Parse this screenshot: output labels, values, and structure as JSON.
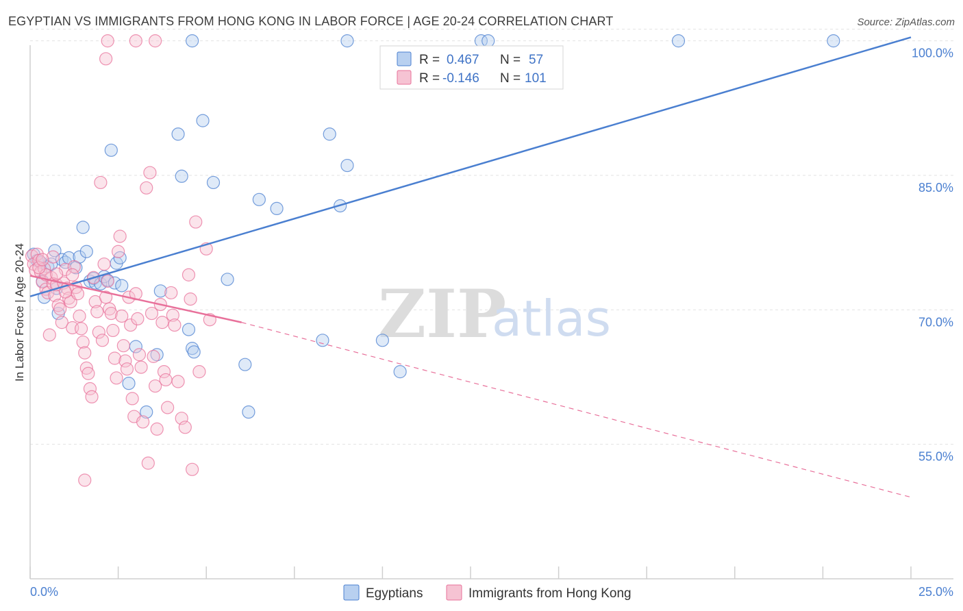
{
  "header": {
    "title": "EGYPTIAN VS IMMIGRANTS FROM HONG KONG IN LABOR FORCE | AGE 20-24 CORRELATION CHART",
    "source": "Source: ZipAtlas.com"
  },
  "watermark": {
    "part1": "ZIP",
    "part2": "atlas"
  },
  "colors": {
    "blue": "#4a7fd0",
    "blue_fill": "#b8d0f0",
    "pink": "#e8709a",
    "pink_fill": "#f6c3d3",
    "grid": "#e2e2e2"
  },
  "chart_data": {
    "type": "scatter",
    "title": "EGYPTIAN VS IMMIGRANTS FROM HONG KONG IN LABOR FORCE | AGE 20-24 CORRELATION CHART",
    "xlabel": "",
    "ylabel": "In Labor Force | Age 20-24",
    "xlim": [
      0,
      25
    ],
    "ylim": [
      40,
      101.5
    ],
    "x_tick_labels": [
      "0.0%",
      "25.0%"
    ],
    "y_ticks": [
      55,
      70,
      85,
      100
    ],
    "y_tick_labels": [
      "55.0%",
      "70.0%",
      "85.0%",
      "100.0%"
    ],
    "legend": [
      {
        "r_label": "R =",
        "r_value": "0.467",
        "n_label": "N =",
        "n_value": "57"
      },
      {
        "r_label": "R =",
        "r_value": "-0.146",
        "n_label": "N =",
        "n_value": "101"
      }
    ],
    "series": [
      {
        "name": "Egyptians",
        "color": "#4a7fd0",
        "trend": {
          "x": [
            0,
            25
          ],
          "y": [
            71.5,
            100.4
          ]
        },
        "points": [
          [
            0.1,
            76.2
          ],
          [
            0.2,
            75.5
          ],
          [
            0.3,
            75.3
          ],
          [
            0.35,
            73.2
          ],
          [
            0.4,
            71.4
          ],
          [
            0.5,
            74.8
          ],
          [
            0.6,
            75.1
          ],
          [
            0.7,
            76.6
          ],
          [
            0.75,
            72.4
          ],
          [
            0.8,
            69.6
          ],
          [
            0.9,
            75.6
          ],
          [
            1.0,
            75.3
          ],
          [
            1.1,
            75.8
          ],
          [
            1.3,
            74.7
          ],
          [
            1.4,
            75.9
          ],
          [
            1.5,
            79.2
          ],
          [
            1.6,
            76.5
          ],
          [
            1.7,
            73.2
          ],
          [
            1.8,
            73.5
          ],
          [
            1.85,
            73.0
          ],
          [
            2.0,
            72.9
          ],
          [
            2.1,
            73.7
          ],
          [
            2.2,
            73.3
          ],
          [
            2.3,
            87.8
          ],
          [
            2.4,
            73.0
          ],
          [
            2.45,
            75.2
          ],
          [
            2.55,
            75.8
          ],
          [
            2.6,
            72.7
          ],
          [
            2.8,
            61.8
          ],
          [
            3.0,
            65.9
          ],
          [
            3.3,
            58.6
          ],
          [
            3.6,
            65.0
          ],
          [
            3.7,
            72.1
          ],
          [
            4.2,
            89.6
          ],
          [
            4.3,
            84.9
          ],
          [
            4.5,
            67.8
          ],
          [
            4.6,
            65.7
          ],
          [
            4.65,
            65.3
          ],
          [
            4.9,
            91.1
          ],
          [
            5.2,
            84.2
          ],
          [
            5.6,
            73.4
          ],
          [
            6.1,
            63.9
          ],
          [
            6.2,
            58.6
          ],
          [
            6.5,
            82.3
          ],
          [
            7.0,
            81.3
          ],
          [
            8.3,
            66.6
          ],
          [
            8.5,
            89.6
          ],
          [
            8.8,
            81.6
          ],
          [
            9.0,
            86.1
          ],
          [
            10.0,
            66.6
          ],
          [
            10.5,
            63.1
          ],
          [
            12.8,
            100
          ],
          [
            18.4,
            100
          ],
          [
            22.8,
            100
          ],
          [
            4.6,
            100
          ],
          [
            9.0,
            100
          ],
          [
            13.0,
            100
          ]
        ]
      },
      {
        "name": "Immigrants from Hong Kong",
        "color": "#e8709a",
        "trend": {
          "x": [
            0,
            6
          ],
          "y": [
            73.8,
            68.6
          ]
        },
        "trend_extension": {
          "x": [
            6,
            25
          ],
          "y": [
            68.6,
            49.1
          ]
        },
        "points": [
          [
            0.05,
            76.0
          ],
          [
            0.1,
            75.1
          ],
          [
            0.15,
            74.4
          ],
          [
            0.2,
            76.2
          ],
          [
            0.25,
            75.5
          ],
          [
            0.3,
            74.2
          ],
          [
            0.35,
            73.1
          ],
          [
            0.4,
            74.6
          ],
          [
            0.45,
            72.3
          ],
          [
            0.5,
            71.9
          ],
          [
            0.55,
            67.2
          ],
          [
            0.6,
            73.6
          ],
          [
            0.65,
            72.9
          ],
          [
            0.7,
            71.6
          ],
          [
            0.75,
            72.8
          ],
          [
            0.8,
            70.5
          ],
          [
            0.85,
            70.1
          ],
          [
            0.9,
            68.6
          ],
          [
            0.95,
            73.0
          ],
          [
            1.0,
            74.5
          ],
          [
            1.05,
            72.4
          ],
          [
            1.1,
            71.3
          ],
          [
            1.15,
            70.9
          ],
          [
            1.2,
            68.0
          ],
          [
            1.25,
            74.8
          ],
          [
            1.3,
            72.5
          ],
          [
            1.35,
            71.8
          ],
          [
            1.4,
            69.3
          ],
          [
            1.45,
            67.9
          ],
          [
            1.5,
            66.4
          ],
          [
            1.55,
            65.2
          ],
          [
            1.6,
            63.5
          ],
          [
            1.65,
            62.9
          ],
          [
            1.7,
            61.2
          ],
          [
            1.75,
            60.3
          ],
          [
            1.8,
            73.6
          ],
          [
            1.85,
            70.9
          ],
          [
            1.9,
            69.8
          ],
          [
            1.95,
            67.5
          ],
          [
            2.0,
            84.2
          ],
          [
            2.05,
            66.6
          ],
          [
            2.1,
            75.1
          ],
          [
            2.15,
            71.4
          ],
          [
            2.2,
            73.2
          ],
          [
            2.25,
            70.1
          ],
          [
            2.3,
            69.6
          ],
          [
            2.35,
            67.7
          ],
          [
            2.4,
            64.6
          ],
          [
            2.45,
            62.4
          ],
          [
            2.5,
            76.5
          ],
          [
            2.55,
            78.2
          ],
          [
            2.6,
            69.3
          ],
          [
            2.65,
            66.0
          ],
          [
            2.7,
            64.3
          ],
          [
            2.75,
            63.4
          ],
          [
            2.8,
            71.4
          ],
          [
            2.85,
            68.3
          ],
          [
            2.9,
            60.1
          ],
          [
            2.95,
            58.1
          ],
          [
            3.0,
            71.8
          ],
          [
            3.05,
            69.0
          ],
          [
            3.1,
            65.0
          ],
          [
            3.15,
            63.6
          ],
          [
            3.2,
            57.5
          ],
          [
            3.3,
            83.6
          ],
          [
            3.4,
            85.3
          ],
          [
            3.45,
            69.6
          ],
          [
            3.5,
            64.8
          ],
          [
            3.55,
            61.5
          ],
          [
            3.6,
            56.7
          ],
          [
            3.7,
            70.6
          ],
          [
            3.75,
            68.6
          ],
          [
            3.8,
            63.1
          ],
          [
            3.85,
            62.2
          ],
          [
            3.9,
            59.1
          ],
          [
            4.0,
            71.9
          ],
          [
            4.05,
            69.4
          ],
          [
            4.1,
            68.3
          ],
          [
            4.2,
            62.0
          ],
          [
            4.3,
            57.9
          ],
          [
            4.4,
            56.9
          ],
          [
            4.5,
            73.9
          ],
          [
            4.55,
            71.2
          ],
          [
            4.6,
            52.2
          ],
          [
            4.7,
            79.8
          ],
          [
            4.8,
            63.1
          ],
          [
            5.0,
            76.8
          ],
          [
            5.1,
            68.9
          ],
          [
            2.2,
            100
          ],
          [
            3.0,
            100
          ],
          [
            3.55,
            100
          ],
          [
            2.15,
            98.0
          ],
          [
            1.55,
            51.0
          ],
          [
            3.35,
            52.9
          ],
          [
            0.45,
            73.9
          ],
          [
            0.25,
            74.7
          ],
          [
            0.65,
            75.9
          ],
          [
            1.0,
            72.0
          ],
          [
            1.2,
            73.9
          ],
          [
            0.35,
            75.6
          ],
          [
            0.75,
            74.0
          ]
        ]
      }
    ]
  },
  "bottom_legend": [
    "Egyptians",
    "Immigrants from Hong Kong"
  ]
}
